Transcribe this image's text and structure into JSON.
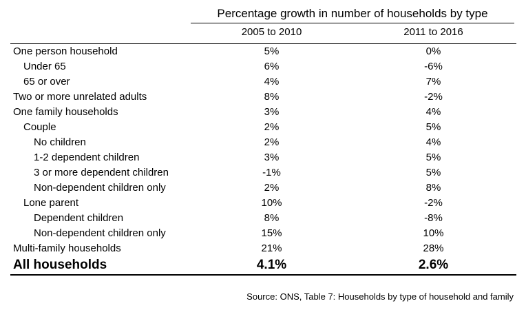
{
  "table": {
    "title": "Percentage growth in number of households by type",
    "columns": [
      "2005 to 2010",
      "2011 to 2016"
    ],
    "rows": [
      {
        "label": "One person household",
        "v1": "5%",
        "v2": "0%"
      },
      {
        "label": "Under 65",
        "v1": "6%",
        "v2": "-6%"
      },
      {
        "label": "65 or over",
        "v1": "4%",
        "v2": "7%"
      },
      {
        "label": "Two or more unrelated adults",
        "v1": "8%",
        "v2": "-2%"
      },
      {
        "label": "One family households",
        "v1": "3%",
        "v2": "4%"
      },
      {
        "label": "Couple",
        "v1": "2%",
        "v2": "5%"
      },
      {
        "label": "No children",
        "v1": "2%",
        "v2": "4%"
      },
      {
        "label": "1-2 dependent children",
        "v1": "3%",
        "v2": "5%"
      },
      {
        "label": "3 or more dependent children",
        "v1": "-1%",
        "v2": "5%"
      },
      {
        "label": "Non-dependent children only",
        "v1": "2%",
        "v2": "8%"
      },
      {
        "label": "Lone parent",
        "v1": "10%",
        "v2": "-2%"
      },
      {
        "label": "Dependent children",
        "v1": "8%",
        "v2": "-8%"
      },
      {
        "label": "Non-dependent children only",
        "v1": "15%",
        "v2": "10%"
      },
      {
        "label": "Multi-family households",
        "v1": "21%",
        "v2": "28%"
      }
    ],
    "total": {
      "label": "All households",
      "v1": "4.1%",
      "v2": "2.6%"
    }
  },
  "source": "Source: ONS, Table 7: Households by type of household and family"
}
